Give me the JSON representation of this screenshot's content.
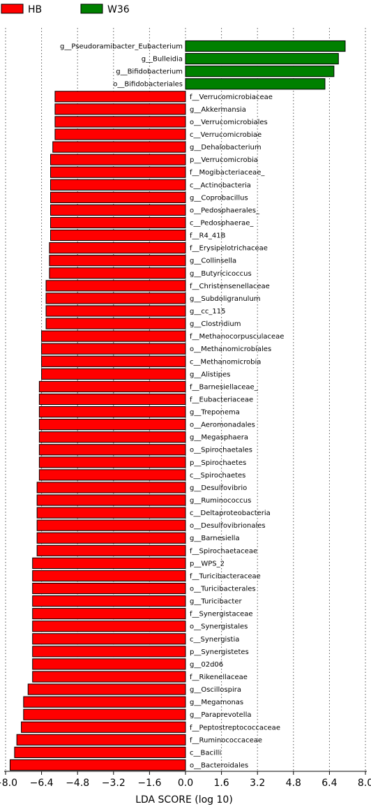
{
  "chart_data": {
    "type": "bar",
    "orientation": "horizontal",
    "xlabel": "LDA SCORE (log 10)",
    "xlim": [
      -8.0,
      8.0
    ],
    "xticks": [
      "−8.0",
      "−6.4",
      "−4.8",
      "−3.2",
      "−1.6",
      "0.0",
      "1.6",
      "3.2",
      "4.8",
      "6.4",
      "8.0"
    ],
    "xtick_values": [
      -8.0,
      -6.4,
      -4.8,
      -3.2,
      -1.6,
      0.0,
      1.6,
      3.2,
      4.8,
      6.4,
      8.0
    ],
    "grid": true,
    "legend_position": "top-left",
    "series": [
      {
        "name": "HB",
        "color": "#ff0000"
      },
      {
        "name": "W36",
        "color": "#008000"
      }
    ],
    "bars": [
      {
        "label": "g__Pseudoramibacter_Eubacterium",
        "value": 7.1,
        "group": "W36"
      },
      {
        "label": "g__Bulleidia",
        "value": 6.8,
        "group": "W36"
      },
      {
        "label": "g__Bifidobacterium",
        "value": 6.6,
        "group": "W36"
      },
      {
        "label": "o__Bifidobacteriales",
        "value": 6.2,
        "group": "W36"
      },
      {
        "label": "f__Verrucomicrobiaceae",
        "value": -5.8,
        "group": "HB"
      },
      {
        "label": "g__Akkermansia",
        "value": -5.8,
        "group": "HB"
      },
      {
        "label": "o__Verrucomicrobiales",
        "value": -5.8,
        "group": "HB"
      },
      {
        "label": "c__Verrucomicrobiae",
        "value": -5.8,
        "group": "HB"
      },
      {
        "label": "g__Dehalobacterium",
        "value": -5.9,
        "group": "HB"
      },
      {
        "label": "p__Verrucomicrobia",
        "value": -6.0,
        "group": "HB"
      },
      {
        "label": "f__Mogibacteriaceae_",
        "value": -6.0,
        "group": "HB"
      },
      {
        "label": "c__Actinobacteria",
        "value": -6.0,
        "group": "HB"
      },
      {
        "label": "g__Coprobacillus",
        "value": -6.0,
        "group": "HB"
      },
      {
        "label": "o__Pedosphaerales_",
        "value": -6.0,
        "group": "HB"
      },
      {
        "label": "c__Pedosphaerae_",
        "value": -6.0,
        "group": "HB"
      },
      {
        "label": "f__R4_41B",
        "value": -6.0,
        "group": "HB"
      },
      {
        "label": "f__Erysipelotrichaceae",
        "value": -6.05,
        "group": "HB"
      },
      {
        "label": "g__Collinsella",
        "value": -6.05,
        "group": "HB"
      },
      {
        "label": "g__Butyricicoccus",
        "value": -6.05,
        "group": "HB"
      },
      {
        "label": "f__Christensenellaceae",
        "value": -6.2,
        "group": "HB"
      },
      {
        "label": "g__Subdoligranulum",
        "value": -6.2,
        "group": "HB"
      },
      {
        "label": "g__cc_115",
        "value": -6.2,
        "group": "HB"
      },
      {
        "label": "g__Clostridium",
        "value": -6.2,
        "group": "HB"
      },
      {
        "label": "f__Methanocorpusculaceae",
        "value": -6.4,
        "group": "HB"
      },
      {
        "label": "o__Methanomicrobiales",
        "value": -6.4,
        "group": "HB"
      },
      {
        "label": "c__Methanomicrobia",
        "value": -6.4,
        "group": "HB"
      },
      {
        "label": "g__Alistipes",
        "value": -6.4,
        "group": "HB"
      },
      {
        "label": "f__Barnesiellaceae_",
        "value": -6.5,
        "group": "HB"
      },
      {
        "label": "f__Eubacteriaceae",
        "value": -6.5,
        "group": "HB"
      },
      {
        "label": "g__Treponema",
        "value": -6.5,
        "group": "HB"
      },
      {
        "label": "o__Aeromonadales",
        "value": -6.5,
        "group": "HB"
      },
      {
        "label": "g__Megasphaera",
        "value": -6.5,
        "group": "HB"
      },
      {
        "label": "o__Spirochaetales",
        "value": -6.5,
        "group": "HB"
      },
      {
        "label": "p__Spirochaetes",
        "value": -6.5,
        "group": "HB"
      },
      {
        "label": "c__Spirochaetes",
        "value": -6.5,
        "group": "HB"
      },
      {
        "label": "g__Desulfovibrio",
        "value": -6.6,
        "group": "HB"
      },
      {
        "label": "g__Ruminococcus",
        "value": -6.6,
        "group": "HB"
      },
      {
        "label": "c__Deltaproteobacteria",
        "value": -6.6,
        "group": "HB"
      },
      {
        "label": "o__Desulfovibrionales",
        "value": -6.6,
        "group": "HB"
      },
      {
        "label": "g__Barnesiella",
        "value": -6.6,
        "group": "HB"
      },
      {
        "label": "f__Spirochaetaceae",
        "value": -6.6,
        "group": "HB"
      },
      {
        "label": "p__WPS_2",
        "value": -6.8,
        "group": "HB"
      },
      {
        "label": "f__Turicibacteraceae",
        "value": -6.8,
        "group": "HB"
      },
      {
        "label": "o__Turicibacterales",
        "value": -6.8,
        "group": "HB"
      },
      {
        "label": "g__Turicibacter",
        "value": -6.8,
        "group": "HB"
      },
      {
        "label": "f__Synergistaceae",
        "value": -6.8,
        "group": "HB"
      },
      {
        "label": "o__Synergistales",
        "value": -6.8,
        "group": "HB"
      },
      {
        "label": "c__Synergistia",
        "value": -6.8,
        "group": "HB"
      },
      {
        "label": "p__Synergistetes",
        "value": -6.8,
        "group": "HB"
      },
      {
        "label": "g__02d06",
        "value": -6.8,
        "group": "HB"
      },
      {
        "label": "f__Rikenellaceae",
        "value": -6.8,
        "group": "HB"
      },
      {
        "label": "g__Oscillospira",
        "value": -7.0,
        "group": "HB"
      },
      {
        "label": "g__Megamonas",
        "value": -7.2,
        "group": "HB"
      },
      {
        "label": "g__Paraprevotella",
        "value": -7.2,
        "group": "HB"
      },
      {
        "label": "f__Peptostreptococcaceae",
        "value": -7.3,
        "group": "HB"
      },
      {
        "label": "f__Ruminococcaceae",
        "value": -7.5,
        "group": "HB"
      },
      {
        "label": "c__Bacilli",
        "value": -7.6,
        "group": "HB"
      },
      {
        "label": "o__Bacteroidales",
        "value": -7.8,
        "group": "HB"
      }
    ]
  }
}
